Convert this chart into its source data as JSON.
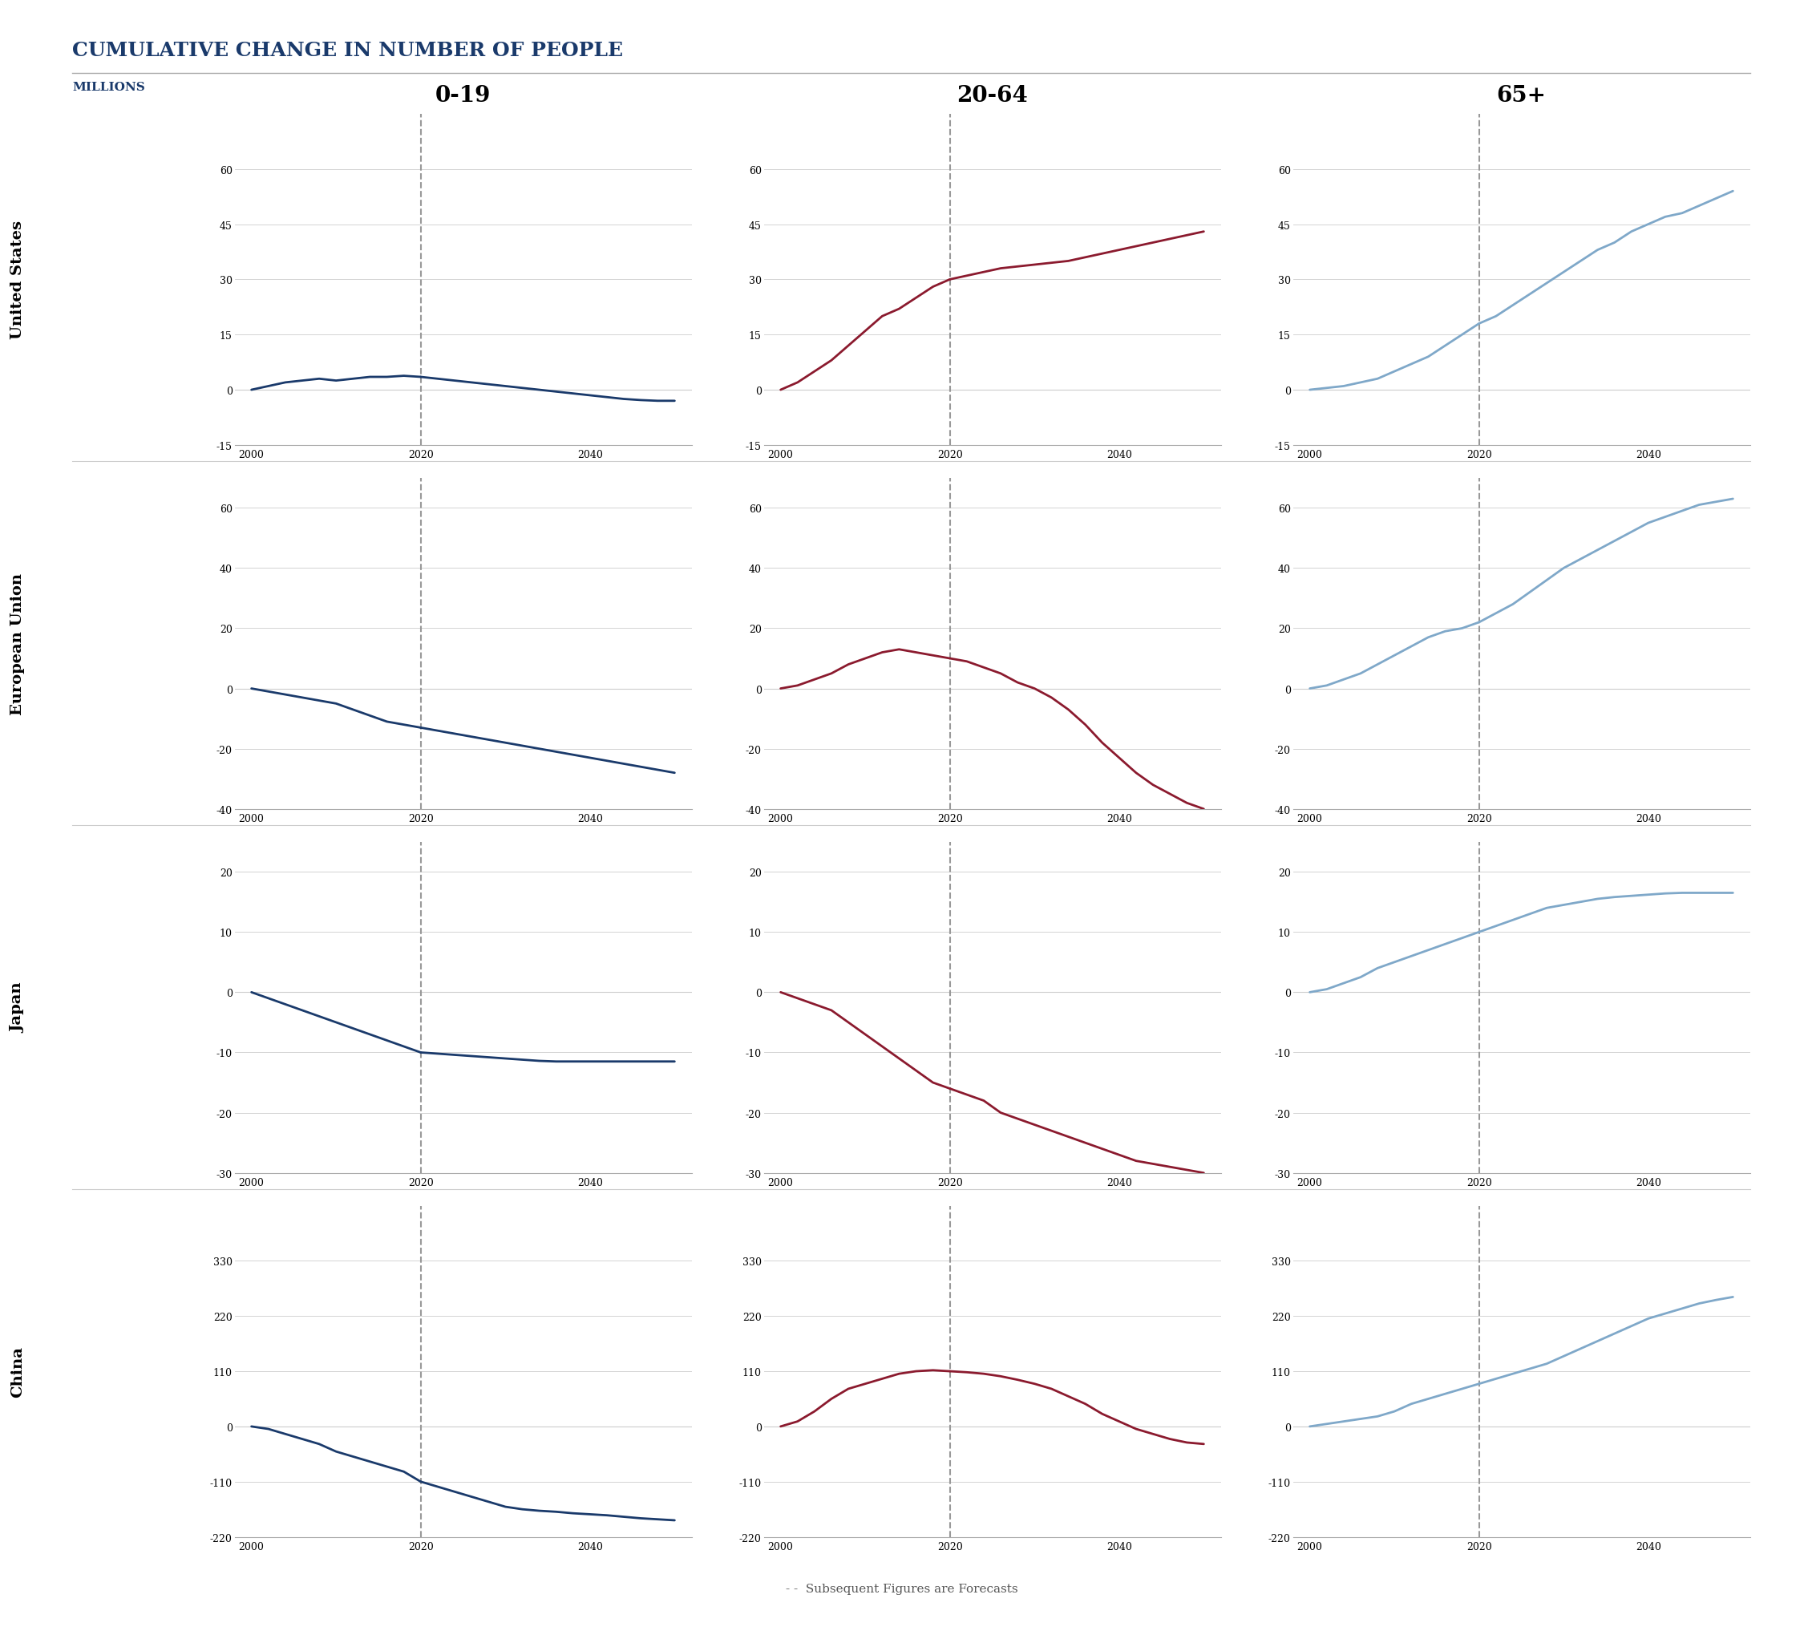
{
  "title": "CUMULATIVE CHANGE IN NUMBER OF PEOPLE",
  "subtitle": "MILLIONS",
  "col_headers": [
    "0-19",
    "20-64",
    "65+"
  ],
  "row_headers": [
    "United States",
    "European Union",
    "Japan",
    "China"
  ],
  "title_color": "#1a3a6b",
  "subtitle_color": "#1a3a6b",
  "col_header_color": "#000000",
  "row_header_color": "#000000",
  "line_color_0_19": "#1a3a6b",
  "line_color_20_64": "#8b1a2e",
  "line_color_65plus": "#7fa8c9",
  "dashed_line_color": "#999999",
  "grid_line_color": "#cccccc",
  "forecast_year": 2020,
  "years_hist": [
    2000,
    2002,
    2004,
    2006,
    2008,
    2010,
    2012,
    2014,
    2016,
    2018,
    2020
  ],
  "years_fore": [
    2020,
    2022,
    2024,
    2026,
    2028,
    2030,
    2032,
    2034,
    2036,
    2038,
    2040,
    2042,
    2044,
    2046,
    2048,
    2050
  ],
  "data": {
    "United States": {
      "0-19": {
        "hist": [
          0,
          1,
          2,
          2.5,
          3,
          2.5,
          3,
          3.5,
          3.5,
          3.8,
          3.5
        ],
        "fore": [
          3.5,
          3.0,
          2.5,
          2.0,
          1.5,
          1.0,
          0.5,
          0.0,
          -0.5,
          -1.0,
          -1.5,
          -2.0,
          -2.5,
          -2.8,
          -3.0,
          -3.0
        ]
      },
      "20-64": {
        "hist": [
          0,
          2,
          5,
          8,
          12,
          16,
          20,
          22,
          25,
          28,
          30
        ],
        "fore": [
          30,
          31,
          32,
          33,
          33.5,
          34,
          34.5,
          35,
          36,
          37,
          38,
          39,
          40,
          41,
          42,
          43
        ]
      },
      "65+": {
        "hist": [
          0,
          0.5,
          1,
          2,
          3,
          5,
          7,
          9,
          12,
          15,
          18
        ],
        "fore": [
          18,
          20,
          23,
          26,
          29,
          32,
          35,
          38,
          40,
          43,
          45,
          47,
          48,
          50,
          52,
          54
        ]
      }
    },
    "European Union": {
      "0-19": {
        "hist": [
          0,
          -1,
          -2,
          -3,
          -4,
          -5,
          -7,
          -9,
          -11,
          -12,
          -13
        ],
        "fore": [
          -13,
          -14,
          -15,
          -16,
          -17,
          -18,
          -19,
          -20,
          -21,
          -22,
          -23,
          -24,
          -25,
          -26,
          -27,
          -28
        ]
      },
      "20-64": {
        "hist": [
          0,
          1,
          3,
          5,
          8,
          10,
          12,
          13,
          12,
          11,
          10
        ],
        "fore": [
          10,
          9,
          7,
          5,
          2,
          0,
          -3,
          -7,
          -12,
          -18,
          -23,
          -28,
          -32,
          -35,
          -38,
          -40
        ]
      },
      "65+": {
        "hist": [
          0,
          1,
          3,
          5,
          8,
          11,
          14,
          17,
          19,
          20,
          22
        ],
        "fore": [
          22,
          25,
          28,
          32,
          36,
          40,
          43,
          46,
          49,
          52,
          55,
          57,
          59,
          61,
          62,
          63
        ]
      }
    },
    "Japan": {
      "0-19": {
        "hist": [
          0,
          -1,
          -2,
          -3,
          -4,
          -5,
          -6,
          -7,
          -8,
          -9,
          -10
        ],
        "fore": [
          -10,
          -10.2,
          -10.4,
          -10.6,
          -10.8,
          -11,
          -11.2,
          -11.4,
          -11.5,
          -11.5,
          -11.5,
          -11.5,
          -11.5,
          -11.5,
          -11.5,
          -11.5
        ]
      },
      "20-64": {
        "hist": [
          0,
          -1,
          -2,
          -3,
          -5,
          -7,
          -9,
          -11,
          -13,
          -15,
          -16
        ],
        "fore": [
          -16,
          -17,
          -18,
          -20,
          -21,
          -22,
          -23,
          -24,
          -25,
          -26,
          -27,
          -28,
          -28.5,
          -29,
          -29.5,
          -30
        ]
      },
      "65+": {
        "hist": [
          0,
          0.5,
          1.5,
          2.5,
          4,
          5,
          6,
          7,
          8,
          9,
          10
        ],
        "fore": [
          10,
          11,
          12,
          13,
          14,
          14.5,
          15,
          15.5,
          15.8,
          16,
          16.2,
          16.4,
          16.5,
          16.5,
          16.5,
          16.5
        ]
      }
    },
    "China": {
      "0-19": {
        "hist": [
          0,
          -5,
          -15,
          -25,
          -35,
          -50,
          -60,
          -70,
          -80,
          -90,
          -110
        ],
        "fore": [
          -110,
          -120,
          -130,
          -140,
          -150,
          -160,
          -165,
          -168,
          -170,
          -173,
          -175,
          -177,
          -180,
          -183,
          -185,
          -187
        ]
      },
      "20-64": {
        "hist": [
          0,
          10,
          30,
          55,
          75,
          85,
          95,
          105,
          110,
          112,
          110
        ],
        "fore": [
          110,
          108,
          105,
          100,
          93,
          85,
          75,
          60,
          45,
          25,
          10,
          -5,
          -15,
          -25,
          -32,
          -35
        ]
      },
      "65+": {
        "hist": [
          0,
          5,
          10,
          15,
          20,
          30,
          45,
          55,
          65,
          75,
          85
        ],
        "fore": [
          85,
          95,
          105,
          115,
          125,
          140,
          155,
          170,
          185,
          200,
          215,
          225,
          235,
          245,
          252,
          258
        ]
      }
    }
  },
  "ylims": {
    "United States": {
      "0-19": [
        -15,
        75
      ],
      "20-64": [
        -15,
        75
      ],
      "65+": [
        -15,
        75
      ]
    },
    "European Union": {
      "0-19": [
        -40,
        70
      ],
      "20-64": [
        -40,
        70
      ],
      "65+": [
        -40,
        70
      ]
    },
    "Japan": {
      "0-19": [
        -30,
        25
      ],
      "20-64": [
        -30,
        25
      ],
      "65+": [
        -30,
        25
      ]
    },
    "China": {
      "0-19": [
        -220,
        440
      ],
      "20-64": [
        -220,
        440
      ],
      "65+": [
        -220,
        440
      ]
    }
  },
  "yticks": {
    "United States": [
      -15,
      0,
      15,
      30,
      45,
      60
    ],
    "European Union": [
      -40,
      -20,
      0,
      20,
      40,
      60
    ],
    "Japan": [
      -30,
      -20,
      -10,
      0,
      10,
      20
    ],
    "China": [
      -220,
      -110,
      0,
      110,
      220,
      330
    ]
  },
  "xticks": [
    2000,
    2020,
    2040
  ],
  "legend_text": "- -  Subsequent Figures are Forecasts"
}
